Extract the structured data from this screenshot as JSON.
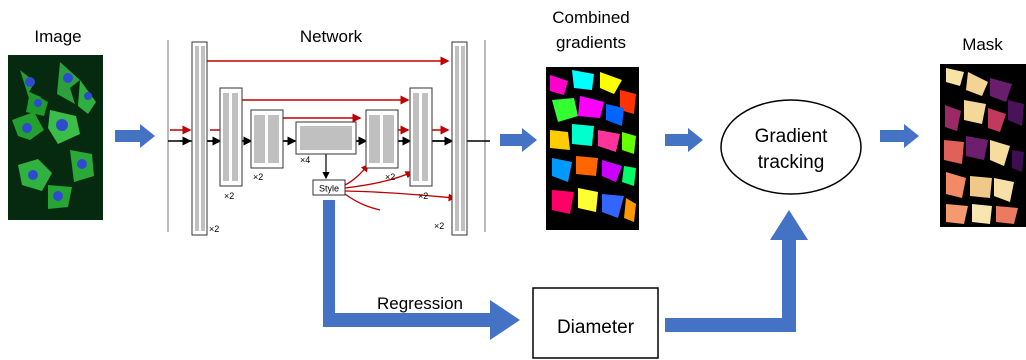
{
  "labels": {
    "image": "Image",
    "network": "Network",
    "combined_gradients_line1": "Combined",
    "combined_gradients_line2": "gradients",
    "mask": "Mask",
    "regression": "Regression",
    "diameter": "Diameter",
    "gradient_tracking_line1": "Gradient",
    "gradient_tracking_line2": "tracking",
    "style": "Style"
  },
  "multipliers": {
    "m_outer_left": "×2",
    "m_level2": "×2",
    "m_level3": "×2",
    "m_bottleneck": "×4",
    "m_up3": "×2",
    "m_up2": "×2",
    "m_outer_right": "×2"
  },
  "colors": {
    "flow_arrow": "#4472c4",
    "skip_arrow": "#c00000",
    "block_fill": "#c0c0c0",
    "image_green": "#1f8f2a",
    "image_blue": "#2e4bd0"
  },
  "icons": {
    "image_panel": "microscopy-image",
    "gradients_panel": "flow-field-image",
    "mask_panel": "segmentation-mask-image"
  }
}
